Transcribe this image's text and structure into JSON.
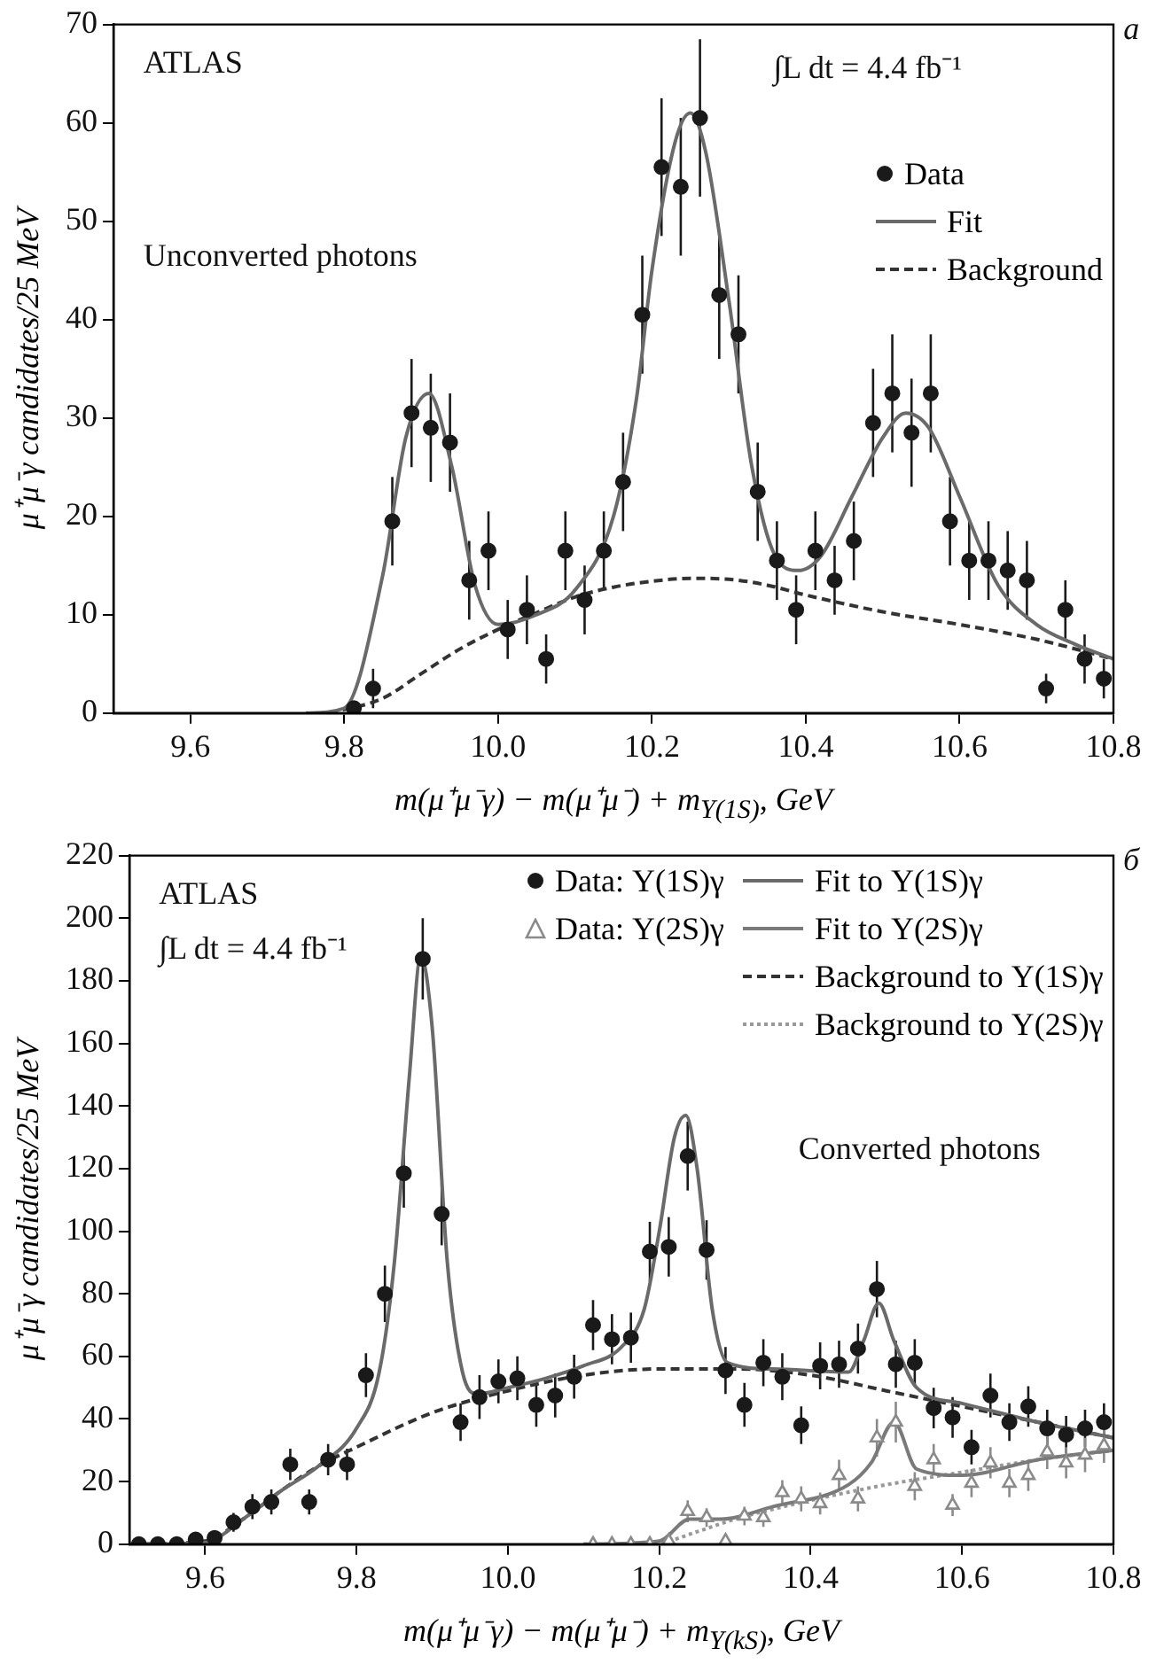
{
  "chart_data": [
    {
      "type": "scatter",
      "xlabel": "m(μ⁺μ⁻γ) − m(μ⁺μ⁻) + m$_{Υ(1S)}$, GeV",
      "ylabel": "μ⁺μ⁻γ candidates/25 MeV",
      "annotations": [
        "ATLAS",
        "∫L dt = 4.4 fb⁻¹",
        "Unconverted photons",
        "a"
      ],
      "xlim": [
        9.5,
        10.8
      ],
      "xticks": [
        9.6,
        9.8,
        {
          "value": 10,
          "label": "10.0"
        },
        10.2,
        10.4,
        10.6,
        10.8
      ],
      "ylim": [
        0,
        70
      ],
      "yticks": [
        0,
        10,
        20,
        30,
        40,
        50,
        60,
        70
      ],
      "grid": false,
      "legend": "top right",
      "series": [
        {
          "name": "Data",
          "marker": "circle",
          "color": "#1a1a1a",
          "x": [
            9.8125,
            9.8375,
            9.8625,
            9.8875,
            9.9125,
            9.9375,
            9.9625,
            9.9875,
            10.0125,
            10.0375,
            10.0625,
            10.0875,
            10.1125,
            10.1375,
            10.1625,
            10.1875,
            10.2125,
            10.2375,
            10.2625,
            10.2875,
            10.3125,
            10.3375,
            10.3625,
            10.3875,
            10.4125,
            10.4375,
            10.4625,
            10.4875,
            10.5125,
            10.5375,
            10.5625,
            10.5875,
            10.6125,
            10.6375,
            10.6625,
            10.6875,
            10.7125,
            10.7375,
            10.7625,
            10.7875
          ],
          "values": [
            0.5,
            2.5,
            19.5,
            30.5,
            29,
            27.5,
            13.5,
            16.5,
            8.5,
            10.5,
            5.5,
            16.5,
            11.5,
            16.5,
            23.5,
            40.5,
            55.5,
            53.5,
            60.5,
            42.5,
            38.5,
            22.5,
            15.5,
            10.5,
            16.5,
            13.5,
            17.5,
            29.5,
            32.5,
            28.5,
            32.5,
            19.5,
            15.5,
            15.5,
            14.5,
            13.5,
            2.5,
            10.5,
            5.5,
            3.5
          ],
          "errors": [
            null,
            2,
            4.5,
            5.5,
            5.5,
            5,
            4,
            4,
            3,
            3.5,
            2.5,
            4,
            3.5,
            4,
            5,
            6,
            7,
            7,
            8,
            6.5,
            6,
            5,
            4,
            3.5,
            4,
            3.5,
            4,
            5.5,
            6,
            5.5,
            6,
            4.5,
            4,
            4,
            4,
            4,
            1.5,
            3,
            2.5,
            2
          ]
        },
        {
          "name": "Fit",
          "type": "line",
          "line_style": "solid",
          "color": "#6a6a6a",
          "x": [
            9.75,
            9.8,
            9.85,
            9.88,
            9.91,
            9.94,
            9.97,
            10.0,
            10.05,
            10.1,
            10.15,
            10.18,
            10.2,
            10.23,
            10.25,
            10.27,
            10.3,
            10.33,
            10.36,
            10.39,
            10.42,
            10.46,
            10.5,
            10.53,
            10.56,
            10.6,
            10.65,
            10.7,
            10.75,
            10.8
          ],
          "values": [
            0,
            0.5,
            14,
            28,
            32.5,
            25,
            13,
            9,
            10,
            12.5,
            20,
            32,
            45,
            58,
            61,
            57,
            42,
            25,
            16,
            14.5,
            16,
            22,
            28,
            30.5,
            29,
            22,
            13,
            9,
            7,
            5.5
          ]
        },
        {
          "name": "Background",
          "type": "line",
          "line_style": "dashed",
          "color": "#333333",
          "x": [
            9.78,
            9.85,
            9.9,
            9.95,
            10.0,
            10.05,
            10.1,
            10.15,
            10.2,
            10.25,
            10.3,
            10.35,
            10.4,
            10.5,
            10.6,
            10.7,
            10.8
          ],
          "values": [
            0,
            1.5,
            4,
            6.5,
            8.5,
            10.2,
            11.8,
            12.8,
            13.4,
            13.7,
            13.6,
            13,
            12,
            10.3,
            9,
            7.5,
            5.5
          ]
        }
      ]
    },
    {
      "type": "scatter",
      "xlabel": "m(μ⁺μ⁻γ) − m(μ⁺μ⁻) + m$_{Υ(kS)}$, GeV",
      "ylabel": "μ⁺μ⁻γ candidates/25 MeV",
      "annotations": [
        "ATLAS",
        "∫L dt = 4.4 fb⁻¹",
        "Converted photons",
        "б"
      ],
      "xlim": [
        9.5,
        10.8
      ],
      "xticks": [
        9.6,
        9.8,
        {
          "value": 10,
          "label": "10.0"
        },
        10.2,
        10.4,
        10.6,
        10.8
      ],
      "ylim": [
        0,
        220
      ],
      "yticks": [
        0,
        20,
        40,
        60,
        80,
        100,
        120,
        140,
        160,
        180,
        200,
        220
      ],
      "grid": false,
      "legend": "top right",
      "series": [
        {
          "name": "Data: Υ(1S)γ",
          "marker": "circle",
          "color": "#1a1a1a",
          "x": [
            9.5125,
            9.5375,
            9.5625,
            9.5875,
            9.6125,
            9.6375,
            9.6625,
            9.6875,
            9.7125,
            9.7375,
            9.7625,
            9.7875,
            9.8125,
            9.8375,
            9.8625,
            9.8875,
            9.9125,
            9.9375,
            9.9625,
            9.9875,
            10.0125,
            10.0375,
            10.0625,
            10.0875,
            10.1125,
            10.1375,
            10.1625,
            10.1875,
            10.2125,
            10.2375,
            10.2625,
            10.2875,
            10.3125,
            10.3375,
            10.3625,
            10.3875,
            10.4125,
            10.4375,
            10.4625,
            10.4875,
            10.5125,
            10.5375,
            10.5625,
            10.5875,
            10.6125,
            10.6375,
            10.6625,
            10.6875,
            10.7125,
            10.7375,
            10.7625,
            10.7875
          ],
          "values": [
            0,
            0,
            0,
            1.5,
            2,
            7,
            12,
            13.5,
            25.5,
            13.5,
            27,
            25.5,
            54,
            80,
            118.5,
            187,
            105.5,
            39,
            47,
            52,
            53,
            44.5,
            47.5,
            53.5,
            70,
            65.5,
            66,
            93.5,
            95,
            124,
            94,
            55.5,
            44.5,
            58,
            53.5,
            38,
            57,
            57.5,
            62.5,
            81.5,
            57.5,
            58,
            43.5,
            40.5,
            31,
            47.5,
            39,
            44,
            37,
            35,
            37,
            39
          ],
          "errors": [
            null,
            null,
            null,
            null,
            null,
            3,
            4,
            4,
            5,
            4,
            5,
            5,
            7,
            9,
            11,
            13,
            10,
            6,
            7,
            7,
            7,
            7,
            7,
            7,
            8,
            8,
            8,
            9.5,
            9.5,
            11,
            9.5,
            7.5,
            7,
            7.5,
            7.5,
            6,
            7.5,
            7.5,
            8,
            9,
            7.5,
            7.5,
            6.5,
            6.5,
            5.5,
            7,
            6,
            6.5,
            6,
            6,
            6,
            6
          ]
        },
        {
          "name": "Data: Υ(2S)γ",
          "marker": "triangle",
          "color": "#8a8a8a",
          "x": [
            10.1125,
            10.1375,
            10.1625,
            10.1875,
            10.2125,
            10.2375,
            10.2625,
            10.2875,
            10.3125,
            10.3375,
            10.3625,
            10.3875,
            10.4125,
            10.4375,
            10.4625,
            10.4875,
            10.5125,
            10.5375,
            10.5625,
            10.5875,
            10.6125,
            10.6375,
            10.6625,
            10.6875,
            10.7125,
            10.7375,
            10.7625,
            10.7875
          ],
          "values": [
            0,
            0,
            0,
            0,
            1,
            10.5,
            8.5,
            1,
            9,
            8.5,
            16.5,
            14.5,
            13,
            22,
            14.5,
            34,
            39,
            18.5,
            27,
            12.5,
            19.5,
            26,
            19.5,
            22,
            29.5,
            26,
            28.5,
            31.5
          ],
          "errors": [
            null,
            null,
            null,
            null,
            null,
            3.5,
            3,
            null,
            3,
            3,
            4,
            4,
            3.5,
            5,
            4,
            6,
            6.5,
            4.5,
            5,
            3.5,
            4.5,
            5,
            4.5,
            5,
            5.5,
            5,
            5.5,
            5.5
          ]
        },
        {
          "name": "Fit to Υ(1S)γ",
          "type": "line",
          "line_style": "solid",
          "color": "#6a6a6a",
          "x": [
            9.5,
            9.6,
            9.65,
            9.7,
            9.75,
            9.8,
            9.83,
            9.85,
            9.87,
            9.885,
            9.9,
            9.92,
            9.94,
            9.96,
            10.0,
            10.05,
            10.1,
            10.15,
            10.18,
            10.2,
            10.22,
            10.235,
            10.25,
            10.27,
            10.29,
            10.35,
            10.45,
            10.47,
            10.49,
            10.51,
            10.54,
            10.6,
            10.7,
            10.8
          ],
          "values": [
            0,
            0.5,
            8,
            17,
            25,
            37,
            55,
            90,
            150,
            188,
            165,
            90,
            55,
            48,
            50,
            53,
            57,
            63,
            75,
            100,
            130,
            137,
            120,
            75,
            58,
            56,
            55,
            65,
            77,
            65,
            50,
            45,
            39,
            34
          ]
        },
        {
          "name": "Fit to Υ(2S)γ",
          "type": "line",
          "line_style": "solid",
          "color": "#7a7a7a",
          "x": [
            10.1,
            10.2,
            10.24,
            10.28,
            10.35,
            10.45,
            10.48,
            10.51,
            10.54,
            10.6,
            10.7,
            10.8
          ],
          "values": [
            0,
            1,
            8,
            8,
            12,
            19,
            26,
            39,
            24,
            22,
            27,
            30
          ]
        },
        {
          "name": "Background to Υ(1S)γ",
          "type": "line",
          "line_style": "dashed",
          "color": "#333333",
          "x": [
            9.5,
            9.6,
            9.65,
            9.7,
            9.75,
            9.8,
            9.9,
            10.0,
            10.1,
            10.2,
            10.3,
            10.4,
            10.5,
            10.6,
            10.7,
            10.8
          ],
          "values": [
            0,
            1,
            8,
            17,
            25,
            31,
            42,
            49,
            54,
            56,
            56,
            54,
            49,
            44,
            39,
            34
          ]
        },
        {
          "name": "Background to Υ(2S)γ",
          "type": "line",
          "line_style": "dotted",
          "color": "#999999",
          "x": [
            10.1,
            10.2,
            10.25,
            10.3,
            10.4,
            10.5,
            10.6,
            10.7,
            10.8
          ],
          "values": [
            0,
            0.5,
            4,
            8,
            14,
            19,
            23,
            27,
            30
          ]
        }
      ]
    }
  ]
}
